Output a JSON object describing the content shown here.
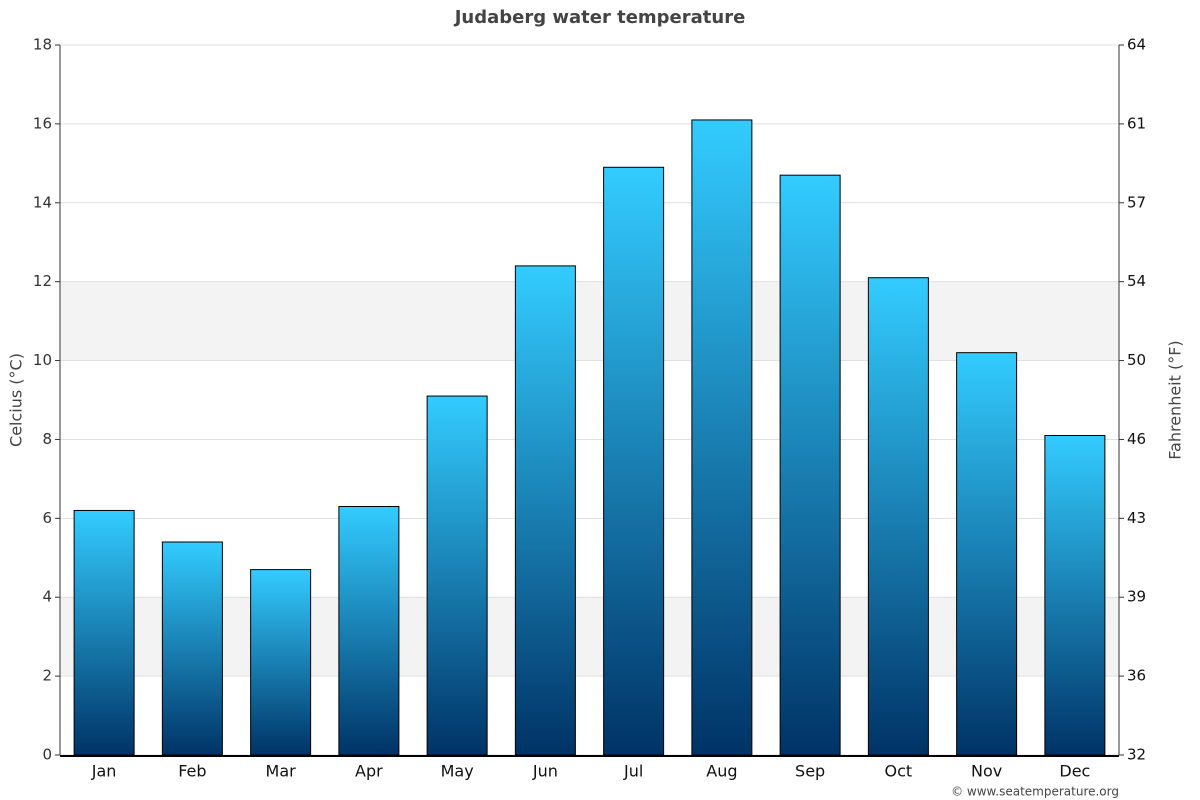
{
  "chart_data": {
    "type": "bar",
    "title": "Judaberg water temperature",
    "categories": [
      "Jan",
      "Feb",
      "Mar",
      "Apr",
      "May",
      "Jun",
      "Jul",
      "Aug",
      "Sep",
      "Oct",
      "Nov",
      "Dec"
    ],
    "values": [
      6.2,
      5.4,
      4.7,
      6.3,
      9.1,
      12.4,
      14.9,
      16.1,
      14.7,
      12.1,
      10.2,
      8.1
    ],
    "color": [
      "#33ccff",
      "#003366"
    ],
    "ylabel": "Celcius (°C)",
    "y2label": "Fahrenheit (°F)",
    "ylim": [
      0,
      18
    ],
    "yticks": [
      0,
      2,
      4,
      6,
      8,
      10,
      12,
      14,
      16,
      18
    ],
    "y2lim": [
      32,
      64.4
    ],
    "y2ticks": [
      32,
      {
        "value": 35.6,
        "label": "36"
      },
      {
        "value": 39.2,
        "label": "39"
      },
      {
        "value": 42.8,
        "label": "43"
      },
      {
        "value": 46.4,
        "label": "46"
      },
      50,
      {
        "value": 53.6,
        "label": "54"
      },
      {
        "value": 57.2,
        "label": "57"
      },
      {
        "value": 60.8,
        "label": "61"
      },
      {
        "value": 64.4,
        "label": "64"
      }
    ],
    "grid": true,
    "credit": "© www.seatemperature.org"
  }
}
